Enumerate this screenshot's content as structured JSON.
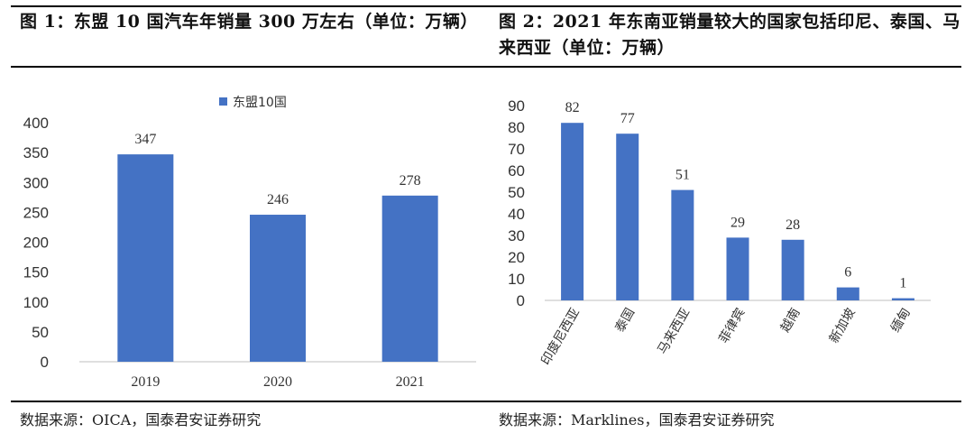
{
  "chart_data": [
    {
      "type": "bar",
      "title": "图 1：东盟 10 国汽车年销量 300 万左右（单位：万辆）",
      "source": "数据来源：OICA，国泰君安证券研究",
      "categories": [
        "2019",
        "2020",
        "2021"
      ],
      "series": [
        {
          "name": "东盟10国",
          "values": [
            347,
            246,
            278
          ]
        }
      ],
      "ylim": [
        0,
        400
      ],
      "yticks": [
        0,
        50,
        100,
        150,
        200,
        250,
        300,
        350,
        400
      ],
      "legend": "top",
      "grid": false,
      "color": "#4472C4"
    },
    {
      "type": "bar",
      "title": "图 2：2021 年东南亚销量较大的国家包括印尼、泰国、马来西亚（单位：万辆）",
      "source": "数据来源：Marklines，国泰君安证券研究",
      "categories": [
        "印度尼西亚",
        "泰国",
        "马来西亚",
        "菲律宾",
        "越南",
        "新加坡",
        "缅甸"
      ],
      "values": [
        82,
        77,
        51,
        29,
        28,
        6,
        1
      ],
      "ylim": [
        0,
        90
      ],
      "yticks": [
        0,
        10,
        20,
        30,
        40,
        50,
        60,
        70,
        80,
        90
      ],
      "grid": false,
      "color": "#4472C4"
    }
  ]
}
